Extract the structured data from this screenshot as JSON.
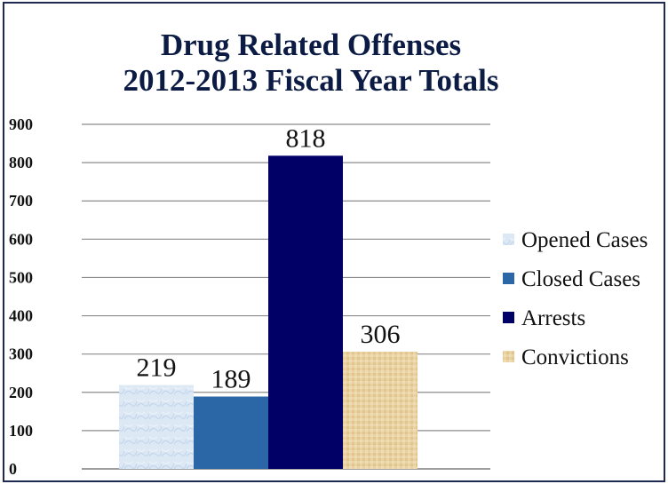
{
  "chart_data": {
    "type": "bar",
    "title": "Drug Related Offenses",
    "subtitle": "2012-2013 Fiscal Year Totals",
    "xlabel": "",
    "ylabel": "",
    "ylim": [
      0,
      900
    ],
    "yticks": [
      0,
      100,
      200,
      300,
      400,
      500,
      600,
      700,
      800,
      900
    ],
    "grid": true,
    "legend": "right",
    "categories": [
      ""
    ],
    "series": [
      {
        "name": "Opened Cases",
        "values": [
          219
        ],
        "color": "#dbe7f5"
      },
      {
        "name": "Closed Cases",
        "values": [
          189
        ],
        "color": "#2b66a6"
      },
      {
        "name": "Arrests",
        "values": [
          818
        ],
        "color": "#000066"
      },
      {
        "name": "Convictions",
        "values": [
          306
        ],
        "color": "#e8cf9c"
      }
    ]
  }
}
